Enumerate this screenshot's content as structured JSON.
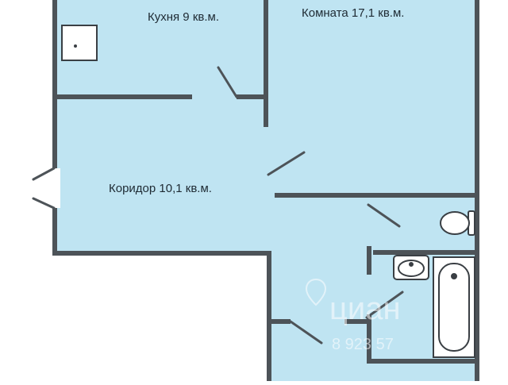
{
  "rooms": {
    "kitchen": {
      "label": "Кухня 9 кв.м."
    },
    "room": {
      "label": "Комната 17,1 кв.м."
    },
    "corridor": {
      "label": "Коридор 10,1 кв.м."
    }
  },
  "colors": {
    "floor": "#bfe4f2",
    "wall": "#4d5358",
    "fixture_outline": "#3a3f44",
    "fixture_fill": "#ffffff",
    "watermark": "#ffffff"
  },
  "watermark": {
    "text": "циан",
    "subtext": "8 923 57"
  },
  "icons": [
    "shower-icon",
    "toilet-icon",
    "sink-icon",
    "bathtub-icon",
    "location-pin-icon"
  ]
}
